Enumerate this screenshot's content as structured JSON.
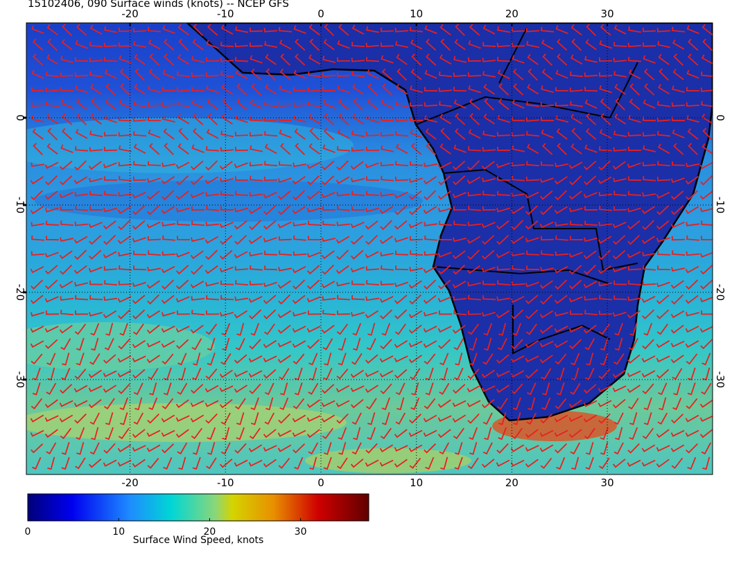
{
  "title": "15102406, 090 Surface winds (knots) -- NCEP GFS",
  "map": {
    "lon_ticks": [
      -20,
      -10,
      0,
      10,
      20,
      30
    ],
    "lat_ticks": [
      0,
      -10,
      -20,
      -30
    ]
  },
  "colorbar": {
    "label": "Surface Wind Speed, knots",
    "ticks": [
      0,
      10,
      20,
      30
    ],
    "range": [
      0,
      37.5
    ]
  }
}
